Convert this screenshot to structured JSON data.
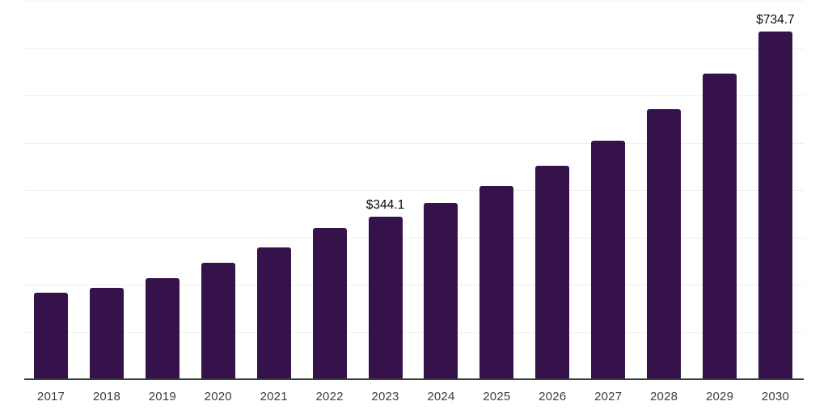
{
  "chart_data": {
    "type": "bar",
    "title": "",
    "xlabel": "",
    "ylabel": "",
    "categories": [
      "2017",
      "2018",
      "2019",
      "2020",
      "2021",
      "2022",
      "2023",
      "2024",
      "2025",
      "2026",
      "2027",
      "2028",
      "2029",
      "2030"
    ],
    "values": [
      182.4,
      192.6,
      213.0,
      245.4,
      278.9,
      320.3,
      344.1,
      373.4,
      408.8,
      450.9,
      503.7,
      570.6,
      646.7,
      734.7
    ],
    "value_prefix": "$",
    "data_labels": [
      {
        "category": "2023",
        "text": "$344.1"
      },
      {
        "category": "2030",
        "text": "$734.7"
      }
    ],
    "ylim": [
      0,
      800
    ],
    "gridline_step": 100,
    "grid": "horizontal",
    "y_tick_labels_shown": false,
    "legend": "none",
    "colors": {
      "bar": "#36124B",
      "gridline": "#EFEFEF",
      "axis_line": "#3C3C3C",
      "tick_label": "#3C3C3C",
      "data_label": "#0B0B0B",
      "background": "#FFFFFF"
    }
  }
}
